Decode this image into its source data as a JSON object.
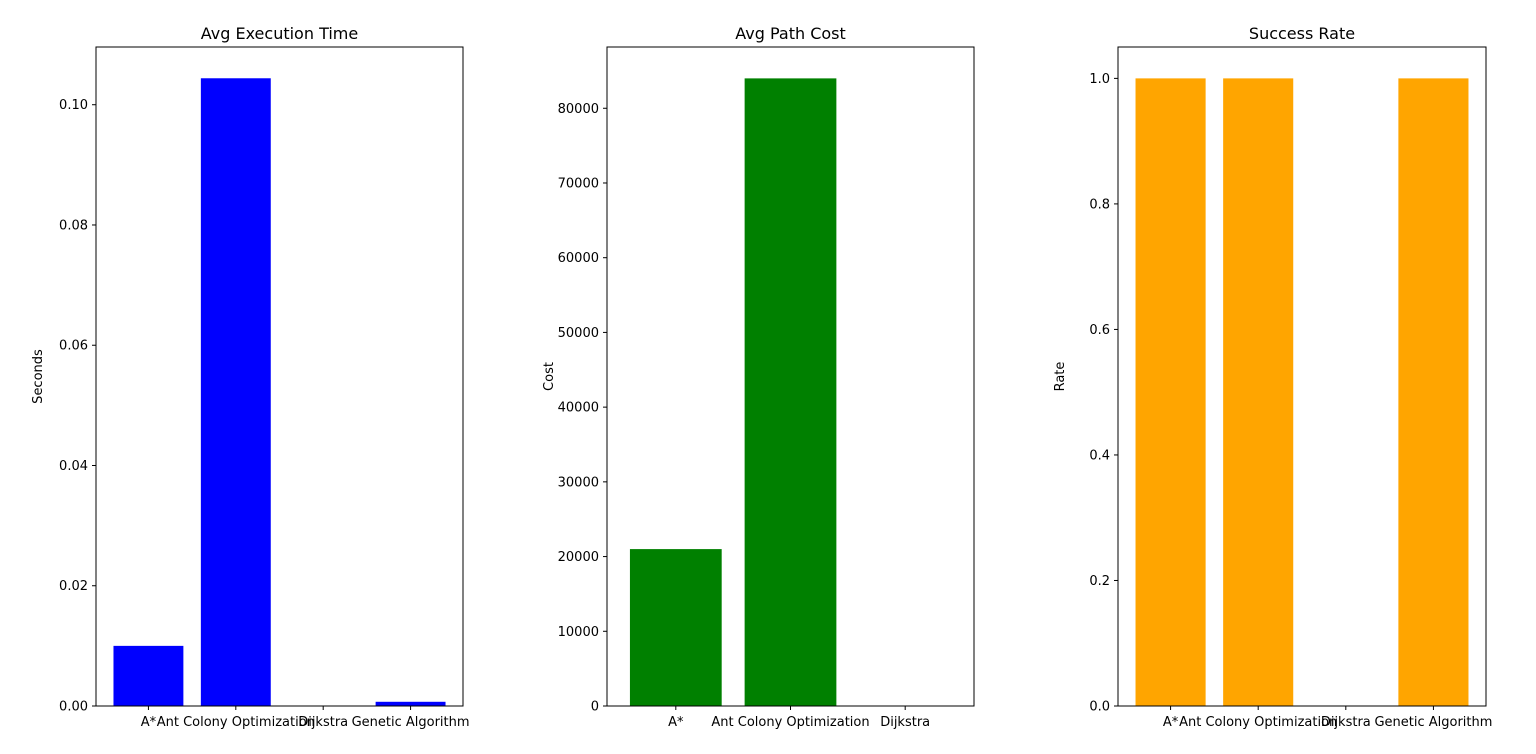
{
  "chart_data": [
    {
      "type": "bar",
      "title": "Avg Execution Time",
      "xlabel": "",
      "ylabel": "Seconds",
      "categories": [
        "A*",
        "Ant Colony Optimization",
        "Dijkstra",
        "Genetic Algorithm"
      ],
      "values": [
        0.01,
        0.1044,
        0.0,
        0.0007
      ],
      "ylim": [
        0,
        0.1096
      ],
      "yticks": [
        0.0,
        0.02,
        0.04,
        0.06,
        0.08,
        0.1
      ],
      "ytick_labels": [
        "0.00",
        "0.02",
        "0.04",
        "0.06",
        "0.08",
        "0.10"
      ],
      "color": "#0000ff",
      "grid": false,
      "legend": "none"
    },
    {
      "type": "bar",
      "title": "Avg Path Cost",
      "xlabel": "",
      "ylabel": "Cost",
      "categories": [
        "A*",
        "Ant Colony Optimization",
        "Dijkstra"
      ],
      "values": [
        21000,
        84000,
        0
      ],
      "ylim": [
        0,
        88200
      ],
      "yticks": [
        0,
        10000,
        20000,
        30000,
        40000,
        50000,
        60000,
        70000,
        80000
      ],
      "ytick_labels": [
        "0",
        "10000",
        "20000",
        "30000",
        "40000",
        "50000",
        "60000",
        "70000",
        "80000"
      ],
      "color": "#008000",
      "grid": false,
      "legend": "none"
    },
    {
      "type": "bar",
      "title": "Success Rate",
      "xlabel": "",
      "ylabel": "Rate",
      "categories": [
        "A*",
        "Ant Colony Optimization",
        "Dijkstra",
        "Genetic Algorithm"
      ],
      "values": [
        1.0,
        1.0,
        0.0,
        1.0
      ],
      "ylim": [
        0,
        1.05
      ],
      "yticks": [
        0.0,
        0.2,
        0.4,
        0.6,
        0.8,
        1.0
      ],
      "ytick_labels": [
        "0.0",
        "0.2",
        "0.4",
        "0.6",
        "0.8",
        "1.0"
      ],
      "color": "#ffa500",
      "grid": false,
      "legend": "none"
    }
  ]
}
